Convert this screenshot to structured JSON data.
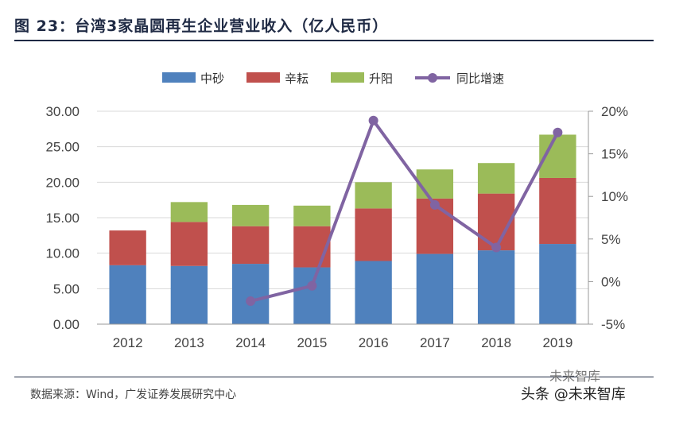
{
  "header": {
    "title": "图 23：台湾3家晶圆再生企业营业收入（亿人民币）"
  },
  "footer": {
    "source": "数据来源：Wind，广发证券发展研究中心",
    "watermark": "头条 @未来智库",
    "watermark_logo": "未来智库"
  },
  "chart_data": {
    "type": "bar",
    "categories": [
      "2012",
      "2013",
      "2014",
      "2015",
      "2016",
      "2017",
      "2018",
      "2019"
    ],
    "series": [
      {
        "name": "中砂",
        "values": [
          8.3,
          8.2,
          8.5,
          8.0,
          8.9,
          9.9,
          10.4,
          11.3
        ],
        "color": "#4f81bd"
      },
      {
        "name": "辛耘",
        "values": [
          4.9,
          6.2,
          5.3,
          5.8,
          7.4,
          7.8,
          8.0,
          9.3
        ],
        "color": "#c0504d"
      },
      {
        "name": "升阳",
        "values": [
          0,
          2.8,
          3.0,
          2.9,
          3.7,
          4.1,
          4.3,
          6.1
        ],
        "color": "#9bbb59"
      }
    ],
    "line": {
      "name": "同比增速",
      "color": "#8064a2",
      "values": [
        null,
        null,
        -2.3,
        -0.5,
        18.9,
        9.0,
        4.0,
        17.5
      ]
    },
    "y_left": {
      "ylim": [
        0,
        30
      ],
      "ticks": [
        "0.00",
        "5.00",
        "10.00",
        "15.00",
        "20.00",
        "25.00",
        "30.00"
      ]
    },
    "y_right": {
      "ylim": [
        -5,
        20
      ],
      "ticks": [
        "-5%",
        "0%",
        "5%",
        "10%",
        "15%",
        "20%"
      ]
    },
    "legend": {
      "placement": "top"
    },
    "grid": true
  }
}
